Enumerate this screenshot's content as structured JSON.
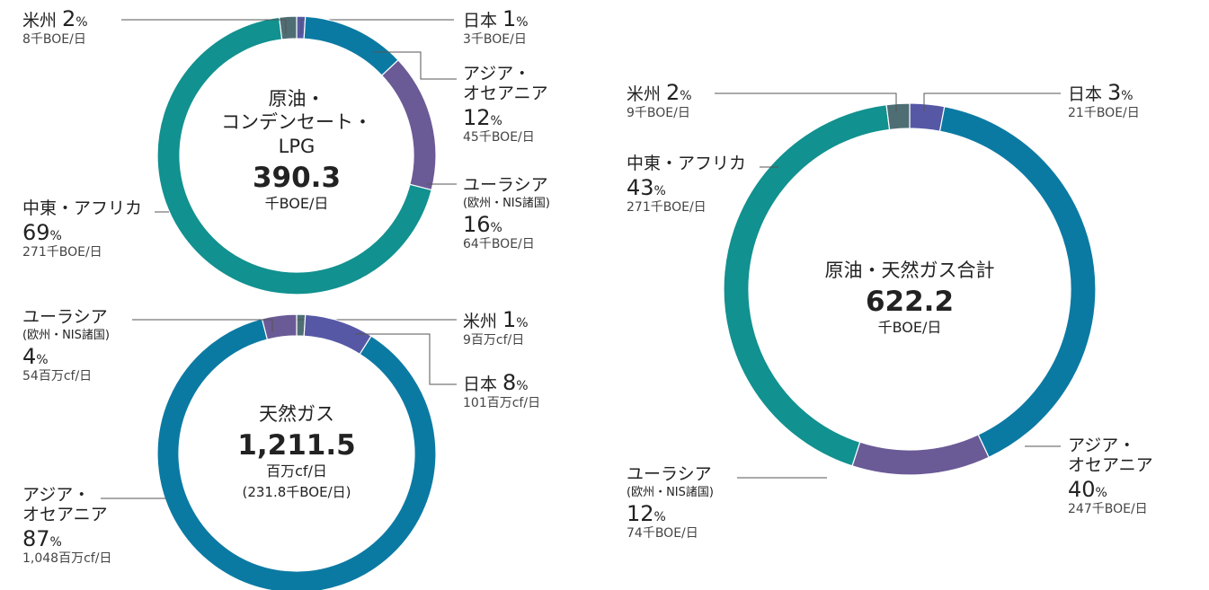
{
  "chart_data": [
    {
      "type": "donut",
      "title": "原油・\nコンデンセート・\nLPG",
      "total": 390.3,
      "total_unit": "千BOE/日",
      "categories": [
        "日本",
        "アジア・\nオセアニア",
        "ユーラシア",
        "中東・アフリカ",
        "米州"
      ],
      "notes": {
        "2": "(欧州・NIS諸国)"
      },
      "values": [
        1,
        12,
        16,
        69,
        2
      ],
      "value_unit": "%",
      "amounts": [
        "3千BOE/日",
        "45千BOE/日",
        "64千BOE/日",
        "271千BOE/日",
        "8千BOE/日"
      ],
      "colors": [
        "#5658a6",
        "#0b7aa3",
        "#6a5a96",
        "#11918f",
        "#4e6e74"
      ]
    },
    {
      "type": "donut",
      "title": "天然ガス",
      "total": {
        "value": 1211.5,
        "label": "1,211.5"
      },
      "total_unit": "百万cf/日",
      "total_note": "(231.8千BOE/日)",
      "categories": [
        "米州",
        "日本",
        "アジア・\nオセアニア",
        "ユーラシア"
      ],
      "notes": {
        "3": "(欧州・NIS諸国)"
      },
      "values": [
        1,
        8,
        87,
        4
      ],
      "value_unit": "%",
      "amounts": [
        "9百万cf/日",
        "101百万cf/日",
        "1,048百万cf/日",
        "54百万cf/日"
      ],
      "colors": [
        "#4e6e74",
        "#5658a6",
        "#0b7aa3",
        "#6a5a96"
      ]
    },
    {
      "type": "donut",
      "title": "原油・天然ガス合計",
      "total": 622.2,
      "total_unit": "千BOE/日",
      "categories": [
        "日本",
        "アジア・\nオセアニア",
        "ユーラシア",
        "中東・アフリカ",
        "米州"
      ],
      "notes": {
        "2": "(欧州・NIS諸国)"
      },
      "values": [
        3,
        40,
        12,
        43,
        2
      ],
      "value_unit": "%",
      "amounts": [
        "21千BOE/日",
        "247千BOE/日",
        "74千BOE/日",
        "271千BOE/日",
        "9千BOE/日"
      ],
      "colors": [
        "#5658a6",
        "#0b7aa3",
        "#6a5a96",
        "#11918f",
        "#4e6e74"
      ]
    }
  ]
}
